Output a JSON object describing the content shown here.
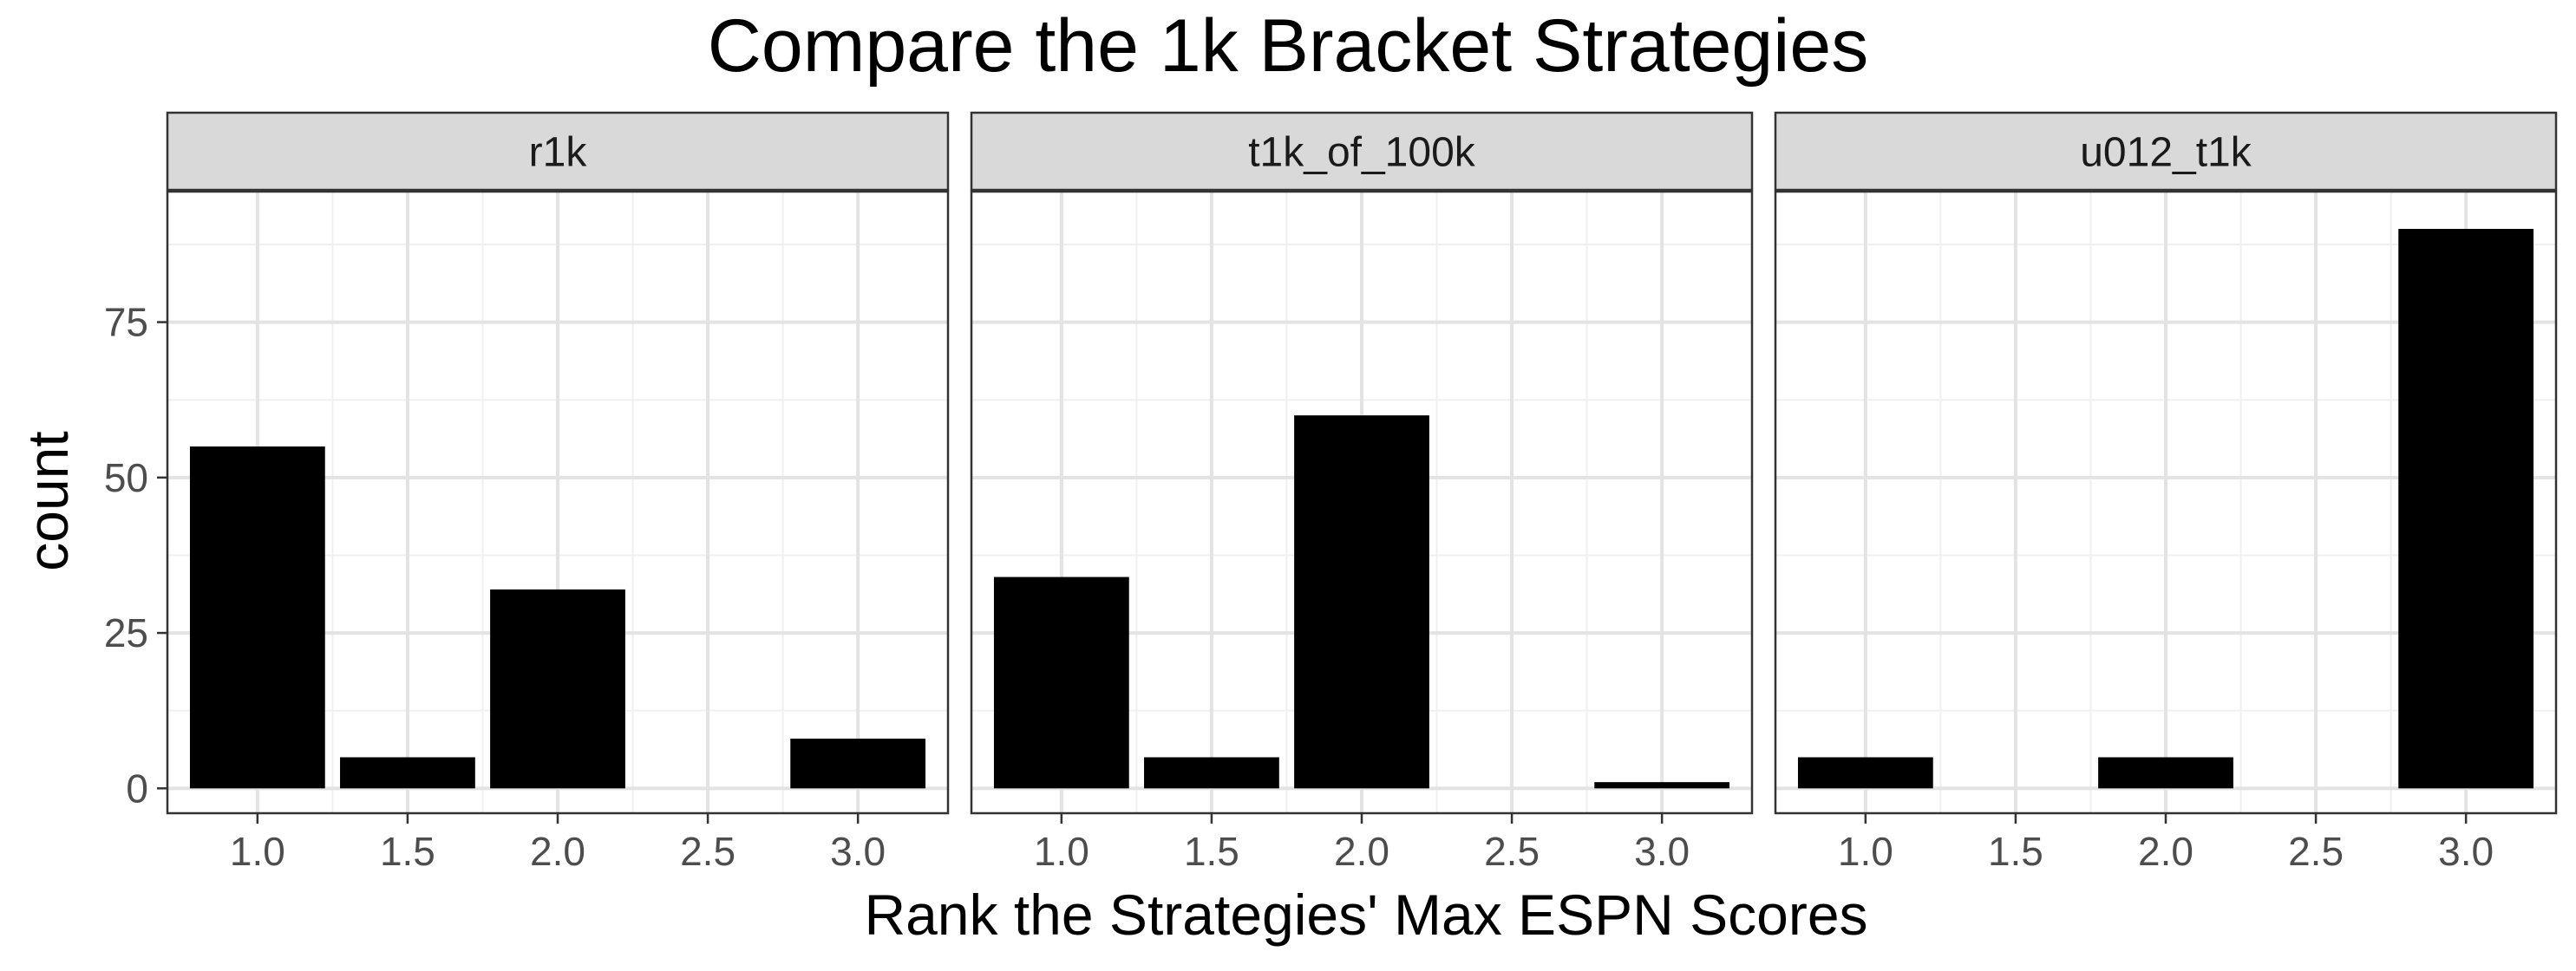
{
  "chart_data": {
    "type": "bar",
    "title": "Compare the 1k Bracket Strategies",
    "xlabel": "Rank the Strategies' Max ESPN Scores",
    "ylabel": "count",
    "x_ticks": [
      "1.0",
      "1.5",
      "2.0",
      "2.5",
      "3.0"
    ],
    "y_ticks": [
      "0",
      "25",
      "50",
      "75"
    ],
    "xlim": [
      0.7,
      3.3
    ],
    "ylim": [
      -4,
      96
    ],
    "grid": true,
    "bar_color": "#000000",
    "facets": [
      {
        "label": "r1k",
        "x": [
          1.0,
          1.5,
          2.0,
          3.0
        ],
        "values": [
          55,
          5,
          32,
          8
        ]
      },
      {
        "label": "t1k_of_100k",
        "x": [
          1.0,
          1.5,
          2.0,
          3.0
        ],
        "values": [
          34,
          5,
          60,
          1
        ]
      },
      {
        "label": "u012_t1k",
        "x": [
          1.0,
          2.0,
          3.0
        ],
        "values": [
          5,
          5,
          90
        ]
      }
    ]
  }
}
